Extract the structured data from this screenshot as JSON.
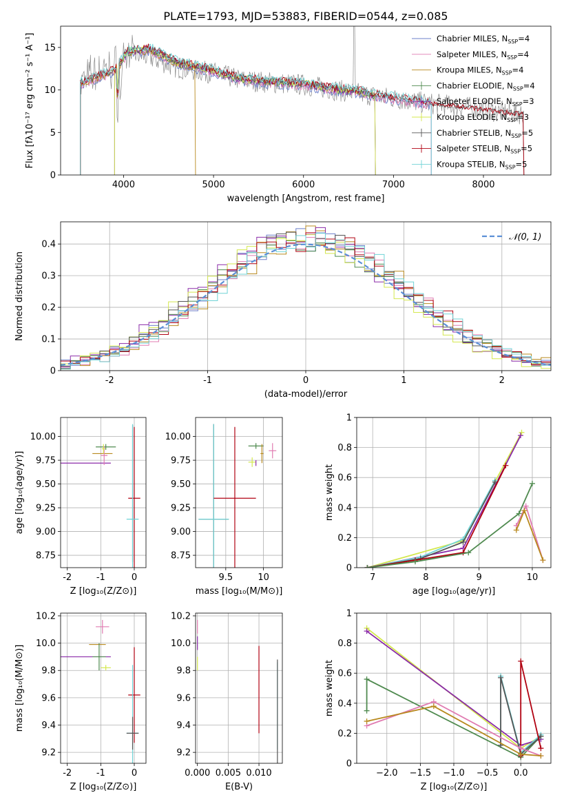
{
  "figure_title": "PLATE=1793, MJD=53883, FIBERID=0544, z=0.085",
  "colors": {
    "Chabrier MILES": "#6b7fc9",
    "Salpeter MILES": "#e07bb1",
    "Kroupa MILES": "#b8891e",
    "Chabrier ELODIE": "#4f8a4f",
    "Salpeter ELODIE": "#8a2aa8",
    "Kroupa ELODIE": "#d4e84e",
    "Chabrier STELIB": "#555555",
    "Salpeter STELIB": "#b00010",
    "Kroupa STELIB": "#6fd3d6",
    "normal": "#5b8fd6"
  },
  "chart_data": [
    {
      "type": "line",
      "id": "spectrum",
      "title": "PLATE=1793, MJD=53883, FIBERID=0544, z=0.085",
      "xlabel": "wavelength [Angstrom, rest frame]",
      "ylabel": "Flux [fλ10⁻¹⁷ erg cm⁻² s⁻¹ A⁻¹]",
      "xlim": [
        3300,
        8750
      ],
      "ylim": [
        0,
        17.5
      ],
      "xticks": [
        4000,
        5000,
        6000,
        7000,
        8000
      ],
      "yticks": [
        0,
        5,
        10,
        15
      ],
      "grid": false,
      "legend_position": "top-right",
      "legend": [
        {
          "name": "Chabrier MILES",
          "nssp": "4"
        },
        {
          "name": "Salpeter MILES",
          "nssp": "4"
        },
        {
          "name": "Kroupa MILES",
          "nssp": "4"
        },
        {
          "name": "Chabrier ELODIE",
          "nssp": "4"
        },
        {
          "name": "Salpeter ELODIE",
          "nssp": "3"
        },
        {
          "name": "Kroupa ELODIE",
          "nssp": "3"
        },
        {
          "name": "Chabrier STELIB",
          "nssp": "5"
        },
        {
          "name": "Salpeter STELIB",
          "nssp": "5"
        },
        {
          "name": "Kroupa STELIB",
          "nssp": "5"
        }
      ],
      "data_spectrum_knots": {
        "x": [
          3520,
          3700,
          3900,
          4050,
          4300,
          4600,
          5000,
          5300,
          5600,
          6000,
          6300,
          6600,
          7000,
          7400,
          7800,
          8200,
          8450
        ],
        "y": [
          11.0,
          12.0,
          12.6,
          14.3,
          13.8,
          12.6,
          12.0,
          11.2,
          10.9,
          10.6,
          10.1,
          9.6,
          9.0,
          8.4,
          8.0,
          7.4,
          7.2
        ]
      },
      "model_spectrum_knots": {
        "x": [
          3520,
          3700,
          3900,
          4050,
          4300,
          4600,
          5000,
          5300,
          5600,
          6000,
          6300,
          6600,
          7000,
          7400
        ],
        "y": [
          10.8,
          11.5,
          12.2,
          14.5,
          14.8,
          13.2,
          12.2,
          11.3,
          10.9,
          10.7,
          10.1,
          9.8,
          9.0,
          8.4
        ]
      }
    },
    {
      "type": "line",
      "id": "residuals",
      "xlabel": "(data-model)/error",
      "ylabel": "Normed distribution",
      "xlim": [
        -2.5,
        2.5
      ],
      "ylim": [
        0,
        0.47
      ],
      "xticks": [
        -2,
        -1,
        0,
        1,
        2
      ],
      "yticks": [
        0.0,
        0.1,
        0.2,
        0.3,
        0.4
      ],
      "grid": true,
      "legend_position": "top-right",
      "legend": [
        "𝒩(0, 1)"
      ],
      "histogram_bin_width": 0.1,
      "reference_curve": "standard normal density"
    },
    {
      "type": "scatter",
      "id": "age_vs_Z",
      "xlabel": "Z [log₁₀(Z/Z⊙)]",
      "ylabel": "age  [log₁₀(age/yr)]",
      "xlim": [
        -2.2,
        0.35
      ],
      "ylim": [
        8.62,
        10.2
      ],
      "xticks": [
        -2,
        -1,
        0
      ],
      "yticks": [
        8.75,
        9.0,
        9.25,
        9.5,
        9.75,
        10.0
      ],
      "ytick_labels": [
        "8.75",
        "9.00",
        "9.25",
        "9.50",
        "9.75",
        "10.00"
      ],
      "grid": true,
      "points": [
        {
          "series": "Salpeter ELODIE",
          "x": -1.45,
          "y": 9.72,
          "xerr": 0.75,
          "yerr": 0.0
        },
        {
          "series": "Kroupa MILES",
          "x": -0.95,
          "y": 9.82,
          "xerr": 0.3,
          "yerr": 0.0
        },
        {
          "series": "Chabrier ELODIE",
          "x": -0.85,
          "y": 9.89,
          "xerr": 0.3,
          "yerr": 0.03
        },
        {
          "series": "Salpeter MILES",
          "x": -0.9,
          "y": 9.8,
          "xerr": 0.1,
          "yerr": 0.1
        },
        {
          "series": "Kroupa ELODIE",
          "x": -0.92,
          "y": 9.87,
          "xerr": 0.05,
          "yerr": 0.05
        },
        {
          "series": "Chabrier STELIB",
          "x": -0.05,
          "y": 9.4,
          "xerr": 0.0,
          "yerr": 0.72
        },
        {
          "series": "Salpeter STELIB",
          "x": 0.0,
          "y": 9.35,
          "xerr": 0.18,
          "yerr": 0.75
        },
        {
          "series": "Kroupa STELIB",
          "x": -0.05,
          "y": 9.13,
          "xerr": 0.18,
          "yerr": 1.0
        }
      ]
    },
    {
      "type": "scatter",
      "id": "age_vs_mass",
      "xlabel": "mass [log₁₀(M/M⊙)]",
      "ylabel": "",
      "xlim": [
        9.1,
        10.25
      ],
      "ylim": [
        8.62,
        10.2
      ],
      "xticks": [
        9.5,
        10.0
      ],
      "yticks": [
        8.75,
        9.0,
        9.25,
        9.5,
        9.75,
        10.0
      ],
      "ytick_labels": [
        "8.75",
        "9.00",
        "9.25",
        "9.50",
        "9.75",
        "10.00"
      ],
      "grid": true,
      "points": [
        {
          "series": "Chabrier STELIB",
          "x": 9.34,
          "y": 9.13,
          "xerr": 0.2,
          "yerr": 1.0
        },
        {
          "series": "Kroupa STELIB",
          "x": 9.34,
          "y": 9.13,
          "xerr": 0.2,
          "yerr": 1.0
        },
        {
          "series": "Salpeter STELIB",
          "x": 9.62,
          "y": 9.35,
          "xerr": 0.28,
          "yerr": 0.75
        },
        {
          "series": "Kroupa ELODIE",
          "x": 9.85,
          "y": 9.73,
          "xerr": 0.05,
          "yerr": 0.05
        },
        {
          "series": "Chabrier ELODIE",
          "x": 9.9,
          "y": 9.9,
          "xerr": 0.1,
          "yerr": 0.03
        },
        {
          "series": "Salpeter ELODIE",
          "x": 9.9,
          "y": 9.72,
          "xerr": 0.0,
          "yerr": 0.03
        },
        {
          "series": "Kroupa MILES",
          "x": 9.98,
          "y": 9.82,
          "xerr": 0.02,
          "yerr": 0.1
        },
        {
          "series": "Salpeter MILES",
          "x": 10.12,
          "y": 9.85,
          "xerr": 0.05,
          "yerr": 0.08
        }
      ]
    },
    {
      "type": "line",
      "id": "massweight_vs_age",
      "xlabel": "age  [log₁₀(age/yr)]",
      "ylabel": "mass weight",
      "xlim": [
        6.7,
        10.35
      ],
      "ylim": [
        0,
        1.0
      ],
      "xticks": [
        7,
        8,
        9,
        10
      ],
      "yticks": [
        0.0,
        0.2,
        0.4,
        0.6,
        0.8,
        1.0
      ],
      "grid": true,
      "series": [
        {
          "name": "Kroupa ELODIE",
          "x": [
            6.9,
            8.7,
            9.8
          ],
          "y": [
            0.0,
            0.18,
            0.9
          ]
        },
        {
          "name": "Salpeter ELODIE",
          "x": [
            6.9,
            8.7,
            9.78
          ],
          "y": [
            0.0,
            0.13,
            0.88
          ]
        },
        {
          "name": "Kroupa STELIB",
          "x": [
            6.9,
            7.9,
            8.7,
            9.3
          ],
          "y": [
            0.0,
            0.07,
            0.19,
            0.58
          ]
        },
        {
          "name": "Chabrier STELIB",
          "x": [
            6.9,
            7.9,
            8.7,
            9.3
          ],
          "y": [
            0.0,
            0.06,
            0.17,
            0.57
          ]
        },
        {
          "name": "Salpeter STELIB",
          "x": [
            6.9,
            7.8,
            8.7,
            9.5
          ],
          "y": [
            0.0,
            0.05,
            0.1,
            0.68
          ]
        },
        {
          "name": "Chabrier ELODIE",
          "x": [
            6.9,
            7.8,
            8.8,
            9.75,
            10.0
          ],
          "y": [
            0.0,
            0.04,
            0.1,
            0.36,
            0.56
          ]
        },
        {
          "name": "Salpeter MILES",
          "x": [
            9.7,
            9.88,
            10.2
          ],
          "y": [
            0.28,
            0.41,
            0.05
          ]
        },
        {
          "name": "Kroupa MILES",
          "x": [
            9.7,
            9.85,
            10.2
          ],
          "y": [
            0.25,
            0.38,
            0.05
          ]
        }
      ]
    },
    {
      "type": "scatter",
      "id": "mass_vs_Z",
      "xlabel": "Z [log₁₀(Z/Z⊙)]",
      "ylabel": "mass [log₁₀(M/M⊙)]",
      "xlim": [
        -2.2,
        0.35
      ],
      "ylim": [
        9.12,
        10.22
      ],
      "xticks": [
        -2,
        -1,
        0
      ],
      "yticks": [
        9.2,
        9.4,
        9.6,
        9.8,
        10.0,
        10.2
      ],
      "ytick_labels": [
        "9.2",
        "9.4",
        "9.6",
        "9.8",
        "10.0",
        "10.2"
      ],
      "grid": true,
      "points": [
        {
          "series": "Salpeter ELODIE",
          "x": -1.45,
          "y": 9.9,
          "xerr": 0.75,
          "yerr": 0.0
        },
        {
          "series": "Salpeter MILES",
          "x": -0.95,
          "y": 10.12,
          "xerr": 0.2,
          "yerr": 0.05
        },
        {
          "series": "Kroupa MILES",
          "x": -1.1,
          "y": 9.99,
          "xerr": 0.25,
          "yerr": 0.0
        },
        {
          "series": "Chabrier ELODIE",
          "x": -1.05,
          "y": 9.9,
          "xerr": 0.2,
          "yerr": 0.1
        },
        {
          "series": "Kroupa ELODIE",
          "x": -0.85,
          "y": 9.82,
          "xerr": 0.15,
          "yerr": 0.02
        },
        {
          "series": "Salpeter STELIB",
          "x": 0.0,
          "y": 9.62,
          "xerr": 0.18,
          "yerr": 0.35
        },
        {
          "series": "Kroupa STELIB",
          "x": -0.05,
          "y": 9.34,
          "xerr": 0.18,
          "yerr": 0.5
        },
        {
          "series": "Chabrier STELIB",
          "x": -0.05,
          "y": 9.34,
          "xerr": 0.18,
          "yerr": 0.12
        }
      ]
    },
    {
      "type": "scatter",
      "id": "mass_vs_ebv",
      "xlabel": "E(B-V)",
      "ylabel": "",
      "xlim": [
        -0.0003,
        0.0138
      ],
      "ylim": [
        9.12,
        10.22
      ],
      "xticks": [
        0.0,
        0.005,
        0.01
      ],
      "xtick_labels": [
        "0.000",
        "0.005",
        "0.010"
      ],
      "yticks": [
        9.2,
        9.4,
        9.6,
        9.8,
        10.0,
        10.2
      ],
      "ytick_labels": [
        "9.2",
        "9.4",
        "9.6",
        "9.8",
        "10.0",
        "10.2"
      ],
      "grid": true,
      "points": [
        {
          "series": "Salpeter MILES",
          "x": 0.0,
          "y": 10.12,
          "xerr": 0.0,
          "yerr": 0.05
        },
        {
          "series": "Salpeter ELODIE",
          "x": 0.0,
          "y": 10.0,
          "xerr": 0.0,
          "yerr": 0.05
        },
        {
          "series": "Kroupa ELODIE",
          "x": 0.0,
          "y": 9.85,
          "xerr": 0.0,
          "yerr": 0.05
        },
        {
          "series": "Salpeter STELIB",
          "x": 0.01,
          "y": 9.66,
          "xerr": 0.0,
          "yerr": 0.32
        },
        {
          "series": "Kroupa STELIB",
          "x": 0.013,
          "y": 9.54,
          "xerr": 0.0,
          "yerr": 0.32
        },
        {
          "series": "Chabrier STELIB",
          "x": 0.013,
          "y": 9.5,
          "xerr": 0.0,
          "yerr": 0.38
        }
      ]
    },
    {
      "type": "line",
      "id": "massweight_vs_Z",
      "xlabel": "Z [log₁₀(Z/Z⊙)]",
      "ylabel": "mass weight",
      "xlim": [
        -2.45,
        0.45
      ],
      "ylim": [
        0,
        1.0
      ],
      "xticks": [
        -2.0,
        -1.5,
        -1.0,
        -0.5,
        0.0
      ],
      "xtick_labels": [
        "−2.0",
        "−1.5",
        "−1.0",
        "−0.5",
        "0.0"
      ],
      "yticks": [
        0.0,
        0.2,
        0.4,
        0.6,
        0.8,
        1.0
      ],
      "grid": true,
      "series": [
        {
          "name": "Kroupa ELODIE",
          "x": [
            -2.3,
            0.0,
            0.3
          ],
          "y": [
            0.9,
            0.1,
            0.18
          ]
        },
        {
          "name": "Salpeter ELODIE",
          "x": [
            -2.3,
            0.0,
            0.3
          ],
          "y": [
            0.88,
            0.12,
            0.16
          ]
        },
        {
          "name": "Chabrier ELODIE",
          "x": [
            -2.3,
            -2.3,
            0.0,
            0.3
          ],
          "y": [
            0.35,
            0.56,
            0.04,
            0.18
          ]
        },
        {
          "name": "Kroupa STELIB",
          "x": [
            -0.3,
            -0.3,
            0.0,
            0.3
          ],
          "y": [
            0.12,
            0.58,
            0.07,
            0.19
          ]
        },
        {
          "name": "Chabrier STELIB",
          "x": [
            -0.3,
            -0.3,
            0.0,
            0.3
          ],
          "y": [
            0.12,
            0.57,
            0.06,
            0.18
          ]
        },
        {
          "name": "Salpeter STELIB",
          "x": [
            0.0,
            0.0,
            0.3
          ],
          "y": [
            0.05,
            0.68,
            0.1
          ]
        },
        {
          "name": "Salpeter MILES",
          "x": [
            -2.3,
            -1.3,
            0.0,
            0.3
          ],
          "y": [
            0.25,
            0.41,
            0.1,
            0.05
          ]
        },
        {
          "name": "Kroupa MILES",
          "x": [
            -2.3,
            -1.3,
            0.0,
            0.3
          ],
          "y": [
            0.28,
            0.38,
            0.06,
            0.05
          ]
        }
      ]
    }
  ]
}
